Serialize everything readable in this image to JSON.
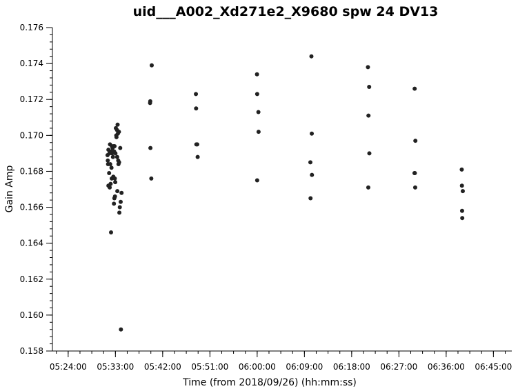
{
  "chart_data": {
    "type": "scatter",
    "title": "uid___A002_Xd271e2_X9680 spw 24 DV13",
    "xlabel": "Time (from 2018/09/26) (hh:mm:ss)",
    "ylabel": "Gain Amp",
    "x_unit": "hh:mm:ss",
    "xlim": [
      "05:21:00",
      "06:48:30"
    ],
    "ylim": [
      0.158,
      0.176
    ],
    "x_ticks": [
      "05:24:00",
      "05:33:00",
      "05:42:00",
      "05:51:00",
      "06:00:00",
      "06:09:00",
      "06:18:00",
      "06:27:00",
      "06:36:00",
      "06:45:00"
    ],
    "y_ticks": [
      "0.158",
      "0.160",
      "0.162",
      "0.164",
      "0.166",
      "0.168",
      "0.170",
      "0.172",
      "0.174",
      "0.176"
    ],
    "grid": false,
    "marker_color": "#222222",
    "points": [
      {
        "x": "05:31:30",
        "y": 0.1689
      },
      {
        "x": "05:31:33",
        "y": 0.1686
      },
      {
        "x": "05:31:36",
        "y": 0.1684
      },
      {
        "x": "05:31:40",
        "y": 0.1692
      },
      {
        "x": "05:31:40",
        "y": 0.1672
      },
      {
        "x": "05:31:48",
        "y": 0.1679
      },
      {
        "x": "05:31:52",
        "y": 0.169
      },
      {
        "x": "05:31:55",
        "y": 0.1671
      },
      {
        "x": "05:31:58",
        "y": 0.1695
      },
      {
        "x": "05:32:00",
        "y": 0.1684
      },
      {
        "x": "05:32:05",
        "y": 0.1673
      },
      {
        "x": "05:32:10",
        "y": 0.1646
      },
      {
        "x": "05:32:10",
        "y": 0.1691
      },
      {
        "x": "05:32:15",
        "y": 0.1682
      },
      {
        "x": "05:32:18",
        "y": 0.1676
      },
      {
        "x": "05:32:20",
        "y": 0.1694
      },
      {
        "x": "05:32:22",
        "y": 0.169
      },
      {
        "x": "05:32:28",
        "y": 0.1693
      },
      {
        "x": "05:32:32",
        "y": 0.1688
      },
      {
        "x": "05:32:36",
        "y": 0.1677
      },
      {
        "x": "05:32:40",
        "y": 0.1694
      },
      {
        "x": "05:32:43",
        "y": 0.1662
      },
      {
        "x": "05:32:46",
        "y": 0.1691
      },
      {
        "x": "05:32:48",
        "y": 0.1665
      },
      {
        "x": "05:32:50",
        "y": 0.1694
      },
      {
        "x": "05:32:53",
        "y": 0.1676
      },
      {
        "x": "05:32:55",
        "y": 0.1666
      },
      {
        "x": "05:32:58",
        "y": 0.1674
      },
      {
        "x": "05:33:00",
        "y": 0.169
      },
      {
        "x": "05:33:05",
        "y": 0.1704
      },
      {
        "x": "05:33:10",
        "y": 0.17
      },
      {
        "x": "05:33:12",
        "y": 0.1699
      },
      {
        "x": "05:33:18",
        "y": 0.1703
      },
      {
        "x": "05:33:20",
        "y": 0.1688
      },
      {
        "x": "05:33:22",
        "y": 0.1669
      },
      {
        "x": "05:33:25",
        "y": 0.1706
      },
      {
        "x": "05:33:28",
        "y": 0.1701
      },
      {
        "x": "05:33:32",
        "y": 0.1686
      },
      {
        "x": "05:33:35",
        "y": 0.1684
      },
      {
        "x": "05:33:40",
        "y": 0.1702
      },
      {
        "x": "05:33:42",
        "y": 0.1685
      },
      {
        "x": "05:33:45",
        "y": 0.1657
      },
      {
        "x": "05:33:50",
        "y": 0.166
      },
      {
        "x": "05:33:55",
        "y": 0.1693
      },
      {
        "x": "05:34:00",
        "y": 0.1663
      },
      {
        "x": "05:34:03",
        "y": 0.1592
      },
      {
        "x": "05:34:10",
        "y": 0.1668
      },
      {
        "x": "05:39:36",
        "y": 0.1718
      },
      {
        "x": "05:39:38",
        "y": 0.1719
      },
      {
        "x": "05:39:40",
        "y": 0.1693
      },
      {
        "x": "05:39:50",
        "y": 0.1676
      },
      {
        "x": "05:39:55",
        "y": 0.1739
      },
      {
        "x": "05:48:20",
        "y": 0.1723
      },
      {
        "x": "05:48:22",
        "y": 0.1715
      },
      {
        "x": "05:48:25",
        "y": 0.1695
      },
      {
        "x": "05:48:35",
        "y": 0.1695
      },
      {
        "x": "05:48:40",
        "y": 0.1688
      },
      {
        "x": "05:59:58",
        "y": 0.1734
      },
      {
        "x": "06:00:00",
        "y": 0.1723
      },
      {
        "x": "06:00:00",
        "y": 0.1675
      },
      {
        "x": "06:00:14",
        "y": 0.1713
      },
      {
        "x": "06:00:16",
        "y": 0.1702
      },
      {
        "x": "06:10:08",
        "y": 0.1685
      },
      {
        "x": "06:10:10",
        "y": 0.1665
      },
      {
        "x": "06:10:20",
        "y": 0.1744
      },
      {
        "x": "06:10:24",
        "y": 0.1701
      },
      {
        "x": "06:10:26",
        "y": 0.1678
      },
      {
        "x": "06:21:06",
        "y": 0.1738
      },
      {
        "x": "06:21:10",
        "y": 0.1671
      },
      {
        "x": "06:21:12",
        "y": 0.1711
      },
      {
        "x": "06:21:20",
        "y": 0.1727
      },
      {
        "x": "06:21:22",
        "y": 0.169
      },
      {
        "x": "06:29:58",
        "y": 0.1679
      },
      {
        "x": "06:30:00",
        "y": 0.1726
      },
      {
        "x": "06:30:02",
        "y": 0.1679
      },
      {
        "x": "06:30:06",
        "y": 0.1671
      },
      {
        "x": "06:30:08",
        "y": 0.1697
      },
      {
        "x": "06:38:58",
        "y": 0.1681
      },
      {
        "x": "06:39:00",
        "y": 0.1672
      },
      {
        "x": "06:39:02",
        "y": 0.1658
      },
      {
        "x": "06:39:04",
        "y": 0.1654
      },
      {
        "x": "06:39:10",
        "y": 0.1669
      }
    ]
  }
}
